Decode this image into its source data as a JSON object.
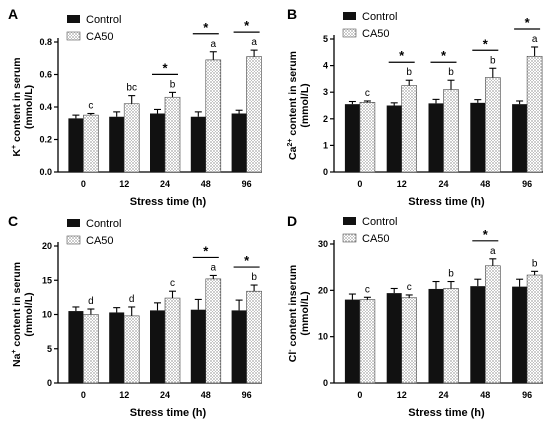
{
  "colors": {
    "control": "#111111",
    "ca50_pattern": "dotted-grey",
    "axis": "#000000"
  },
  "legend": {
    "control": "Control",
    "ca50": "CA50",
    "placement": "top-left"
  },
  "chart_data": [
    {
      "panel": "A",
      "type": "bar",
      "ylabel_parts": [
        "K",
        "+",
        " content in serum",
        "(mmol/L)"
      ],
      "xlabel": "Stress time (h)",
      "categories": [
        "0",
        "12",
        "24",
        "48",
        "96"
      ],
      "ylim": [
        0.0,
        0.8
      ],
      "yticks": [
        0.0,
        0.2,
        0.4,
        0.6,
        0.8
      ],
      "ytick_labels": [
        "0.0",
        "0.2",
        "0.4",
        "0.6",
        "0.8"
      ],
      "series": [
        {
          "name": "Control",
          "values": [
            0.33,
            0.34,
            0.36,
            0.34,
            0.36
          ],
          "errors": [
            0.02,
            0.03,
            0.025,
            0.03,
            0.02
          ]
        },
        {
          "name": "CA50",
          "values": [
            0.35,
            0.42,
            0.46,
            0.69,
            0.71
          ],
          "errors": [
            0.01,
            0.05,
            0.03,
            0.05,
            0.04
          ]
        }
      ],
      "letters": [
        "c",
        "bc",
        "b",
        "a",
        "a"
      ],
      "significance": [
        false,
        false,
        true,
        true,
        true
      ]
    },
    {
      "panel": "B",
      "type": "bar",
      "ylabel_parts": [
        "Ca",
        "2+",
        " content in serum",
        "(mmol/L)"
      ],
      "xlabel": "Stress time (h)",
      "categories": [
        "0",
        "12",
        "24",
        "48",
        "96"
      ],
      "ylim": [
        0,
        5
      ],
      "yticks": [
        0,
        1,
        2,
        3,
        4,
        5
      ],
      "ytick_labels": [
        "0",
        "1",
        "2",
        "3",
        "4",
        "5"
      ],
      "series": [
        {
          "name": "Control",
          "values": [
            2.55,
            2.5,
            2.58,
            2.6,
            2.55
          ],
          "errors": [
            0.1,
            0.1,
            0.15,
            0.12,
            0.12
          ]
        },
        {
          "name": "CA50",
          "values": [
            2.62,
            3.25,
            3.1,
            3.55,
            4.35
          ],
          "errors": [
            0.05,
            0.2,
            0.35,
            0.35,
            0.35
          ]
        }
      ],
      "letters": [
        "c",
        "b",
        "b",
        "b",
        "a"
      ],
      "significance": [
        false,
        true,
        true,
        true,
        true
      ]
    },
    {
      "panel": "C",
      "type": "bar",
      "ylabel_parts": [
        "Na",
        "+",
        " content in serum",
        "(mmol/L)"
      ],
      "xlabel": "Stress time (h)",
      "categories": [
        "0",
        "12",
        "24",
        "48",
        "96"
      ],
      "ylim": [
        0,
        20
      ],
      "yticks": [
        0,
        5,
        10,
        15,
        20
      ],
      "ytick_labels": [
        "0",
        "5",
        "10",
        "15",
        "20"
      ],
      "series": [
        {
          "name": "Control",
          "values": [
            10.5,
            10.3,
            10.6,
            10.7,
            10.6
          ],
          "errors": [
            0.6,
            0.7,
            1.1,
            1.5,
            1.5
          ]
        },
        {
          "name": "CA50",
          "values": [
            10.0,
            9.8,
            12.4,
            15.2,
            13.4
          ],
          "errors": [
            0.8,
            1.3,
            1.0,
            0.5,
            0.9
          ]
        }
      ],
      "letters": [
        "d",
        "d",
        "c",
        "a",
        "b"
      ],
      "significance": [
        false,
        false,
        false,
        true,
        true
      ]
    },
    {
      "panel": "D",
      "type": "bar",
      "ylabel_parts": [
        "Cl",
        "-",
        " content inserum",
        "(mmol/L)"
      ],
      "xlabel": "Stress time (h)",
      "categories": [
        "0",
        "12",
        "24",
        "48",
        "96"
      ],
      "ylim": [
        0,
        30
      ],
      "yticks": [
        0,
        10,
        20,
        30
      ],
      "ytick_labels": [
        "0",
        "10",
        "20",
        "30"
      ],
      "series": [
        {
          "name": "Control",
          "values": [
            18.0,
            19.4,
            20.3,
            20.9,
            20.8
          ],
          "errors": [
            1.2,
            1.0,
            1.6,
            1.5,
            1.6
          ]
        },
        {
          "name": "CA50",
          "values": [
            18.0,
            18.4,
            20.4,
            25.3,
            23.3
          ],
          "errors": [
            0.5,
            0.6,
            1.5,
            1.5,
            0.8
          ]
        }
      ],
      "letters": [
        "c",
        "c",
        "b",
        "a",
        "b"
      ],
      "significance": [
        false,
        false,
        false,
        true,
        false
      ]
    }
  ]
}
